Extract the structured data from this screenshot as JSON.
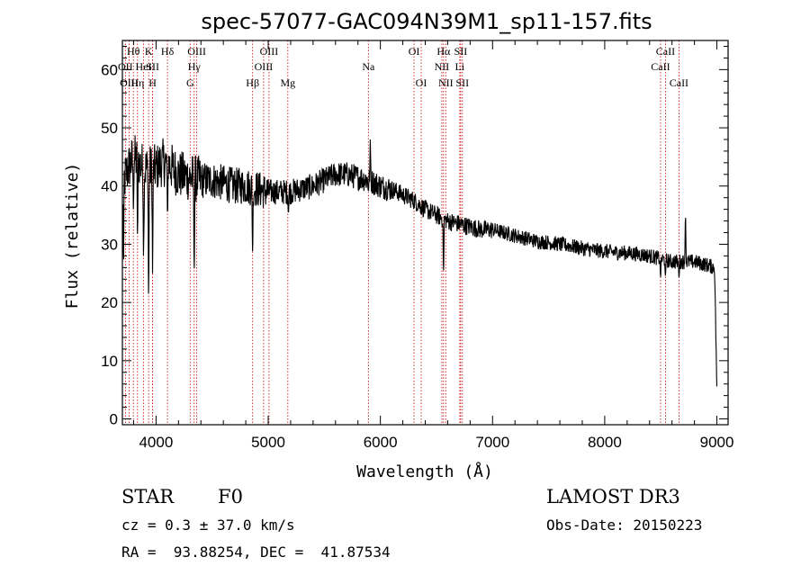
{
  "chart_data": {
    "type": "line",
    "title": "spec-57077-GAC094N39M1_sp11-157.fits",
    "xlabel": "Wavelength (Å)",
    "ylabel": "Flux (relative)",
    "xlim": [
      3700,
      9100
    ],
    "ylim": [
      -1,
      65
    ],
    "xticks": [
      4000,
      5000,
      6000,
      7000,
      8000,
      9000
    ],
    "yticks": [
      0,
      10,
      20,
      30,
      40,
      50,
      60
    ],
    "continuum": [
      [
        3700,
        40
      ],
      [
        3750,
        43
      ],
      [
        3800,
        45
      ],
      [
        3850,
        44
      ],
      [
        3900,
        43
      ],
      [
        3950,
        43
      ],
      [
        4000,
        43
      ],
      [
        4050,
        44
      ],
      [
        4100,
        44
      ],
      [
        4200,
        42
      ],
      [
        4300,
        41.5
      ],
      [
        4400,
        41
      ],
      [
        4500,
        41
      ],
      [
        4600,
        40.5
      ],
      [
        4700,
        40
      ],
      [
        4800,
        40
      ],
      [
        4900,
        39.5
      ],
      [
        5000,
        39
      ],
      [
        5100,
        39
      ],
      [
        5200,
        39
      ],
      [
        5300,
        39.5
      ],
      [
        5400,
        40
      ],
      [
        5500,
        41
      ],
      [
        5600,
        42
      ],
      [
        5700,
        42
      ],
      [
        5800,
        41.5
      ],
      [
        5900,
        41
      ],
      [
        6000,
        40
      ],
      [
        6100,
        39.5
      ],
      [
        6200,
        38.5
      ],
      [
        6300,
        37.5
      ],
      [
        6400,
        36
      ],
      [
        6500,
        35
      ],
      [
        6600,
        34
      ],
      [
        6700,
        33.5
      ],
      [
        6800,
        33
      ],
      [
        6900,
        32.5
      ],
      [
        7000,
        32.5
      ],
      [
        7100,
        32
      ],
      [
        7200,
        31.5
      ],
      [
        7300,
        31
      ],
      [
        7400,
        30.5
      ],
      [
        7500,
        30.3
      ],
      [
        7600,
        30
      ],
      [
        7700,
        29.7
      ],
      [
        7800,
        29.3
      ],
      [
        7900,
        29
      ],
      [
        8000,
        28.8
      ],
      [
        8100,
        28.6
      ],
      [
        8200,
        28.5
      ],
      [
        8300,
        28.3
      ],
      [
        8400,
        28
      ],
      [
        8500,
        27.5
      ],
      [
        8600,
        27
      ],
      [
        8700,
        27
      ],
      [
        8800,
        27
      ],
      [
        8900,
        26.5
      ],
      [
        8980,
        26
      ],
      [
        9000,
        5
      ]
    ],
    "features": [
      {
        "wl": 3710,
        "v": 25
      },
      {
        "wl": 3798,
        "v": 36
      },
      {
        "wl": 3835,
        "v": 30
      },
      {
        "wl": 3889,
        "v": 26
      },
      {
        "wl": 3934,
        "v": 18
      },
      {
        "wl": 3969,
        "v": 25
      },
      {
        "wl": 4102,
        "v": 34
      },
      {
        "wl": 4340,
        "v": 24
      },
      {
        "wl": 4861,
        "v": 27
      },
      {
        "wl": 5180,
        "v": 35
      },
      {
        "wl": 5893,
        "v": 39
      },
      {
        "wl": 5910,
        "v": 48
      },
      {
        "wl": 6563,
        "v": 24
      },
      {
        "wl": 8498,
        "v": 24
      },
      {
        "wl": 8542,
        "v": 24
      },
      {
        "wl": 8662,
        "v": 24
      },
      {
        "wl": 8720,
        "v": 36
      }
    ],
    "spectral_lines": [
      {
        "label": "Hθ",
        "wl": 3798,
        "row": 1
      },
      {
        "label": "OII",
        "wl": 3727,
        "row": 2
      },
      {
        "label": "OIII",
        "wl": 3760,
        "row": 3
      },
      {
        "label": "Hη",
        "wl": 3835,
        "row": 3
      },
      {
        "label": "HeI",
        "wl": 3889,
        "row": 2
      },
      {
        "label": "K",
        "wl": 3934,
        "row": 1
      },
      {
        "label": "SII",
        "wl": 3970,
        "row": 2
      },
      {
        "label": "H",
        "wl": 3969,
        "row": 3
      },
      {
        "label": "Hδ",
        "wl": 4102,
        "row": 1
      },
      {
        "label": "OIII",
        "wl": 4363,
        "row": 1
      },
      {
        "label": "Hγ",
        "wl": 4340,
        "row": 2
      },
      {
        "label": "G",
        "wl": 4304,
        "row": 3
      },
      {
        "label": "OIII",
        "wl": 5007,
        "row": 1
      },
      {
        "label": "OIII",
        "wl": 4959,
        "row": 2
      },
      {
        "label": "Hβ",
        "wl": 4861,
        "row": 3
      },
      {
        "label": "Mg",
        "wl": 5175,
        "row": 3
      },
      {
        "label": "Na",
        "wl": 5893,
        "row": 2
      },
      {
        "label": "OI",
        "wl": 6300,
        "row": 1
      },
      {
        "label": "OI",
        "wl": 6364,
        "row": 3
      },
      {
        "label": "Hα",
        "wl": 6563,
        "row": 1
      },
      {
        "label": "NII",
        "wl": 6548,
        "row": 2
      },
      {
        "label": "NII",
        "wl": 6583,
        "row": 3
      },
      {
        "label": "SII",
        "wl": 6716,
        "row": 1
      },
      {
        "label": "Li",
        "wl": 6708,
        "row": 2
      },
      {
        "label": "SII",
        "wl": 6731,
        "row": 3
      },
      {
        "label": "CaII",
        "wl": 8542,
        "row": 1
      },
      {
        "label": "CaII",
        "wl": 8498,
        "row": 2
      },
      {
        "label": "CaII",
        "wl": 8662,
        "row": 3
      }
    ]
  },
  "info": {
    "object_class": "STAR",
    "subclass": "F0",
    "survey": "LAMOST DR3",
    "redshift": "cz = 0.3 ± 37.0 km/s",
    "obs_date": "Obs-Date: 20150223",
    "coords": "RA =  93.88254, DEC =  41.87534"
  },
  "colors": {
    "line": "#000000",
    "marker": "#cc0000"
  }
}
